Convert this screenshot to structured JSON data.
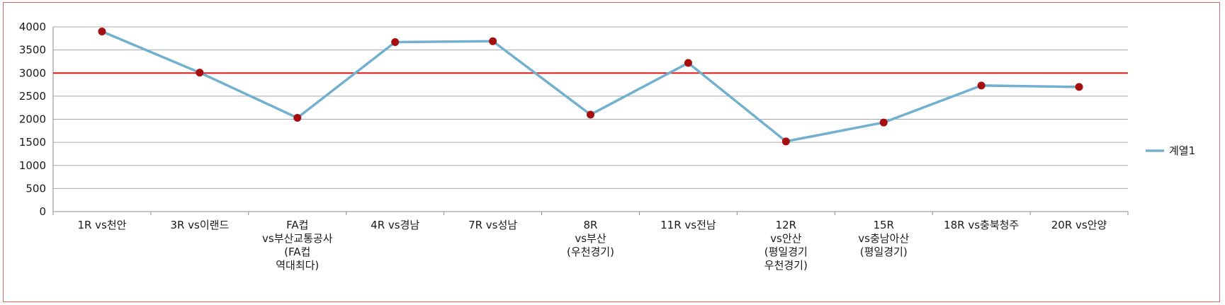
{
  "chart_data": {
    "type": "line",
    "categories": [
      [
        "1R vs천안"
      ],
      [
        "3R vs이랜드"
      ],
      [
        "FA컵",
        "vs부산교통공사",
        "(FA컵",
        "역대최다)"
      ],
      [
        "4R vs경남"
      ],
      [
        "7R vs성남"
      ],
      [
        "8R",
        "vs부산",
        "(우천경기)"
      ],
      [
        "11R vs전남"
      ],
      [
        "12R",
        "vs안산",
        "(평일경기",
        "우천경기)"
      ],
      [
        "15R",
        "vs충남아산",
        "(평일경기)"
      ],
      [
        "18R vs충북청주"
      ],
      [
        "20R vs안양"
      ]
    ],
    "series": [
      {
        "name": "계열1",
        "values": [
          3900,
          3010,
          2030,
          3670,
          3690,
          2100,
          3220,
          1520,
          1930,
          2730,
          2700
        ],
        "line_color": "#72b0cf",
        "marker_color": "#a50f0f"
      }
    ],
    "reference_line": {
      "value": 3000,
      "color": "#e01515"
    },
    "yticks": [
      0,
      500,
      1000,
      1500,
      2000,
      2500,
      3000,
      3500,
      4000
    ],
    "ylim": [
      0,
      4000
    ],
    "grid": true,
    "legend": {
      "position": "right",
      "entries": [
        "계열1"
      ]
    },
    "title": "",
    "xlabel": "",
    "ylabel": ""
  },
  "colors": {
    "gridline": "#a8a8a8",
    "axis": "#8c8c8c",
    "frame_border": "#d96a6a"
  }
}
